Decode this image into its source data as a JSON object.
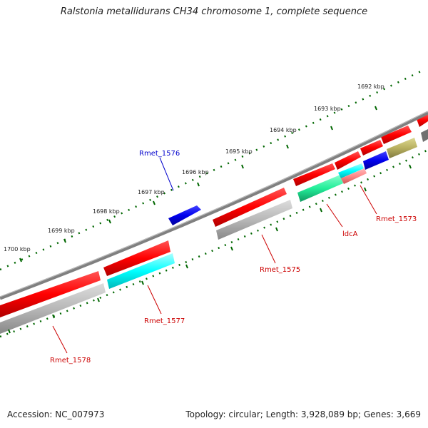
{
  "title": "Ralstonia metallidurans CH34 chromosome 1, complete sequence",
  "footer": {
    "accession": "Accession: NC_007973",
    "stats": "Topology: circular; Length: 3,928,089 bp; Genes: 3,669"
  },
  "kbp_ticks": [
    {
      "label": "1692 kbp"
    },
    {
      "label": "1693 kbp"
    },
    {
      "label": "1694 kbp"
    },
    {
      "label": "1695 kbp"
    },
    {
      "label": "1696 kbp"
    },
    {
      "label": "1697 kbp"
    },
    {
      "label": "1698 kbp"
    },
    {
      "label": "1699 kbp"
    },
    {
      "label": "1700 kbp"
    }
  ],
  "gene_labels": [
    {
      "name": "Rmet_1576",
      "color": "#0000cc"
    },
    {
      "name": "Rmet_1573",
      "color": "#cc0000"
    },
    {
      "name": "ldcA",
      "color": "#cc0000"
    },
    {
      "name": "Rmet_1575",
      "color": "#cc0000"
    },
    {
      "name": "Rmet_1577",
      "color": "#cc0000"
    },
    {
      "name": "Rmet_1578",
      "color": "#cc0000"
    }
  ],
  "colors": {
    "cds": "#ff0000",
    "blue_gene": "#0000ee",
    "cyan_gene": "#00ffff",
    "green_gene": "#22ee99",
    "olive_gene": "#b8b060",
    "pink_gene": "#ff8888",
    "grey_bar": "#b0b0b0",
    "backbone": "#808080",
    "tick_green": "#006600"
  }
}
